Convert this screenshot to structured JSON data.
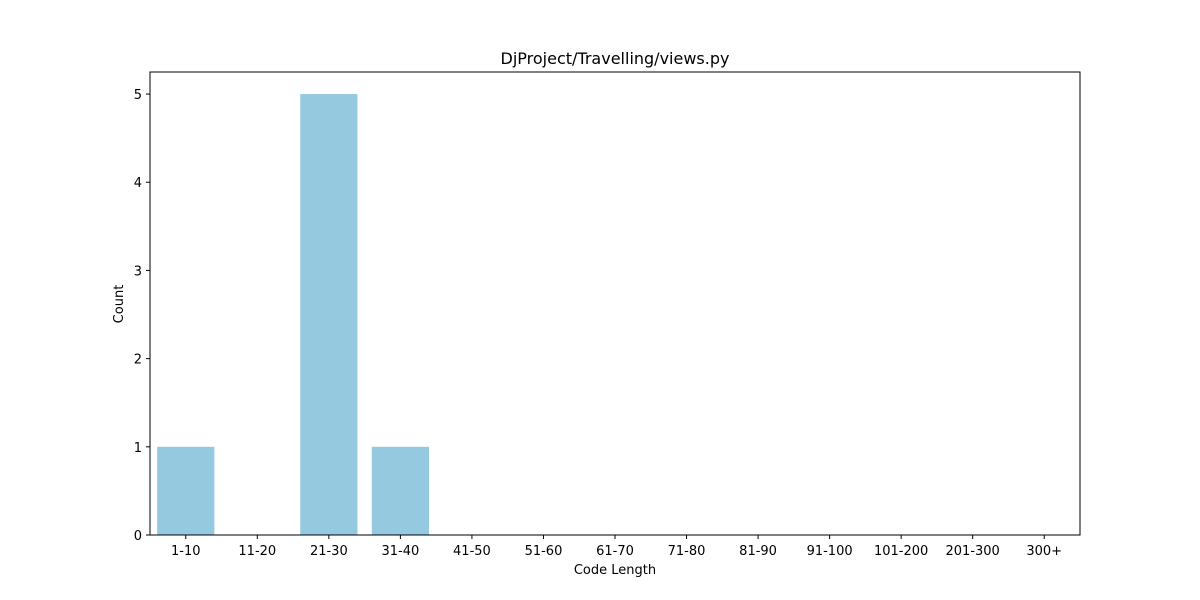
{
  "chart_data": {
    "type": "bar",
    "title": "DjProject/Travelling/views.py",
    "xlabel": "Code Length",
    "ylabel": "Count",
    "categories": [
      "1-10",
      "11-20",
      "21-30",
      "31-40",
      "41-50",
      "51-60",
      "61-70",
      "71-80",
      "81-90",
      "91-100",
      "101-200",
      "201-300",
      "300+"
    ],
    "values": [
      1,
      0,
      5,
      1,
      0,
      0,
      0,
      0,
      0,
      0,
      0,
      0,
      0
    ],
    "ylim": [
      0,
      5.25
    ],
    "yticks": [
      0,
      1,
      2,
      3,
      4,
      5
    ],
    "bar_color": "#95c9e0",
    "grid": false,
    "legend": "none"
  }
}
